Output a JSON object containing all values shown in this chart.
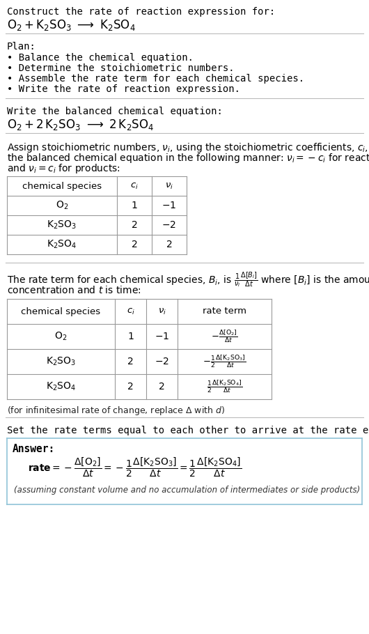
{
  "bg_color": "#ffffff",
  "text_color": "#000000",
  "title_line1": "Construct the rate of reaction expression for:",
  "plan_header": "Plan:",
  "plan_items": [
    "• Balance the chemical equation.",
    "• Determine the stoichiometric numbers.",
    "• Assemble the rate term for each chemical species.",
    "• Write the rate of reaction expression."
  ],
  "balanced_header": "Write the balanced chemical equation:",
  "stoich_intro_lines": [
    "Assign stoichiometric numbers, $\\nu_i$, using the stoichiometric coefficients, $c_i$, from",
    "the balanced chemical equation in the following manner: $\\nu_i = -c_i$ for reactants",
    "and $\\nu_i = c_i$ for products:"
  ],
  "rate_intro_line1": "The rate term for each chemical species, $B_i$, is $\\frac{1}{\\nu_i}\\frac{\\Delta[B_i]}{\\Delta t}$ where $[B_i]$ is the amount",
  "rate_intro_line2": "concentration and $t$ is time:",
  "infinitesimal_note": "(for infinitesimal rate of change, replace Δ with $d$)",
  "set_equal_text": "Set the rate terms equal to each other to arrive at the rate expression:",
  "answer_bg": "#dff0f7",
  "answer_border": "#90c4d8",
  "answer_label": "Answer:",
  "answer_note": "(assuming constant volume and no accumulation of intermediates or side products)"
}
